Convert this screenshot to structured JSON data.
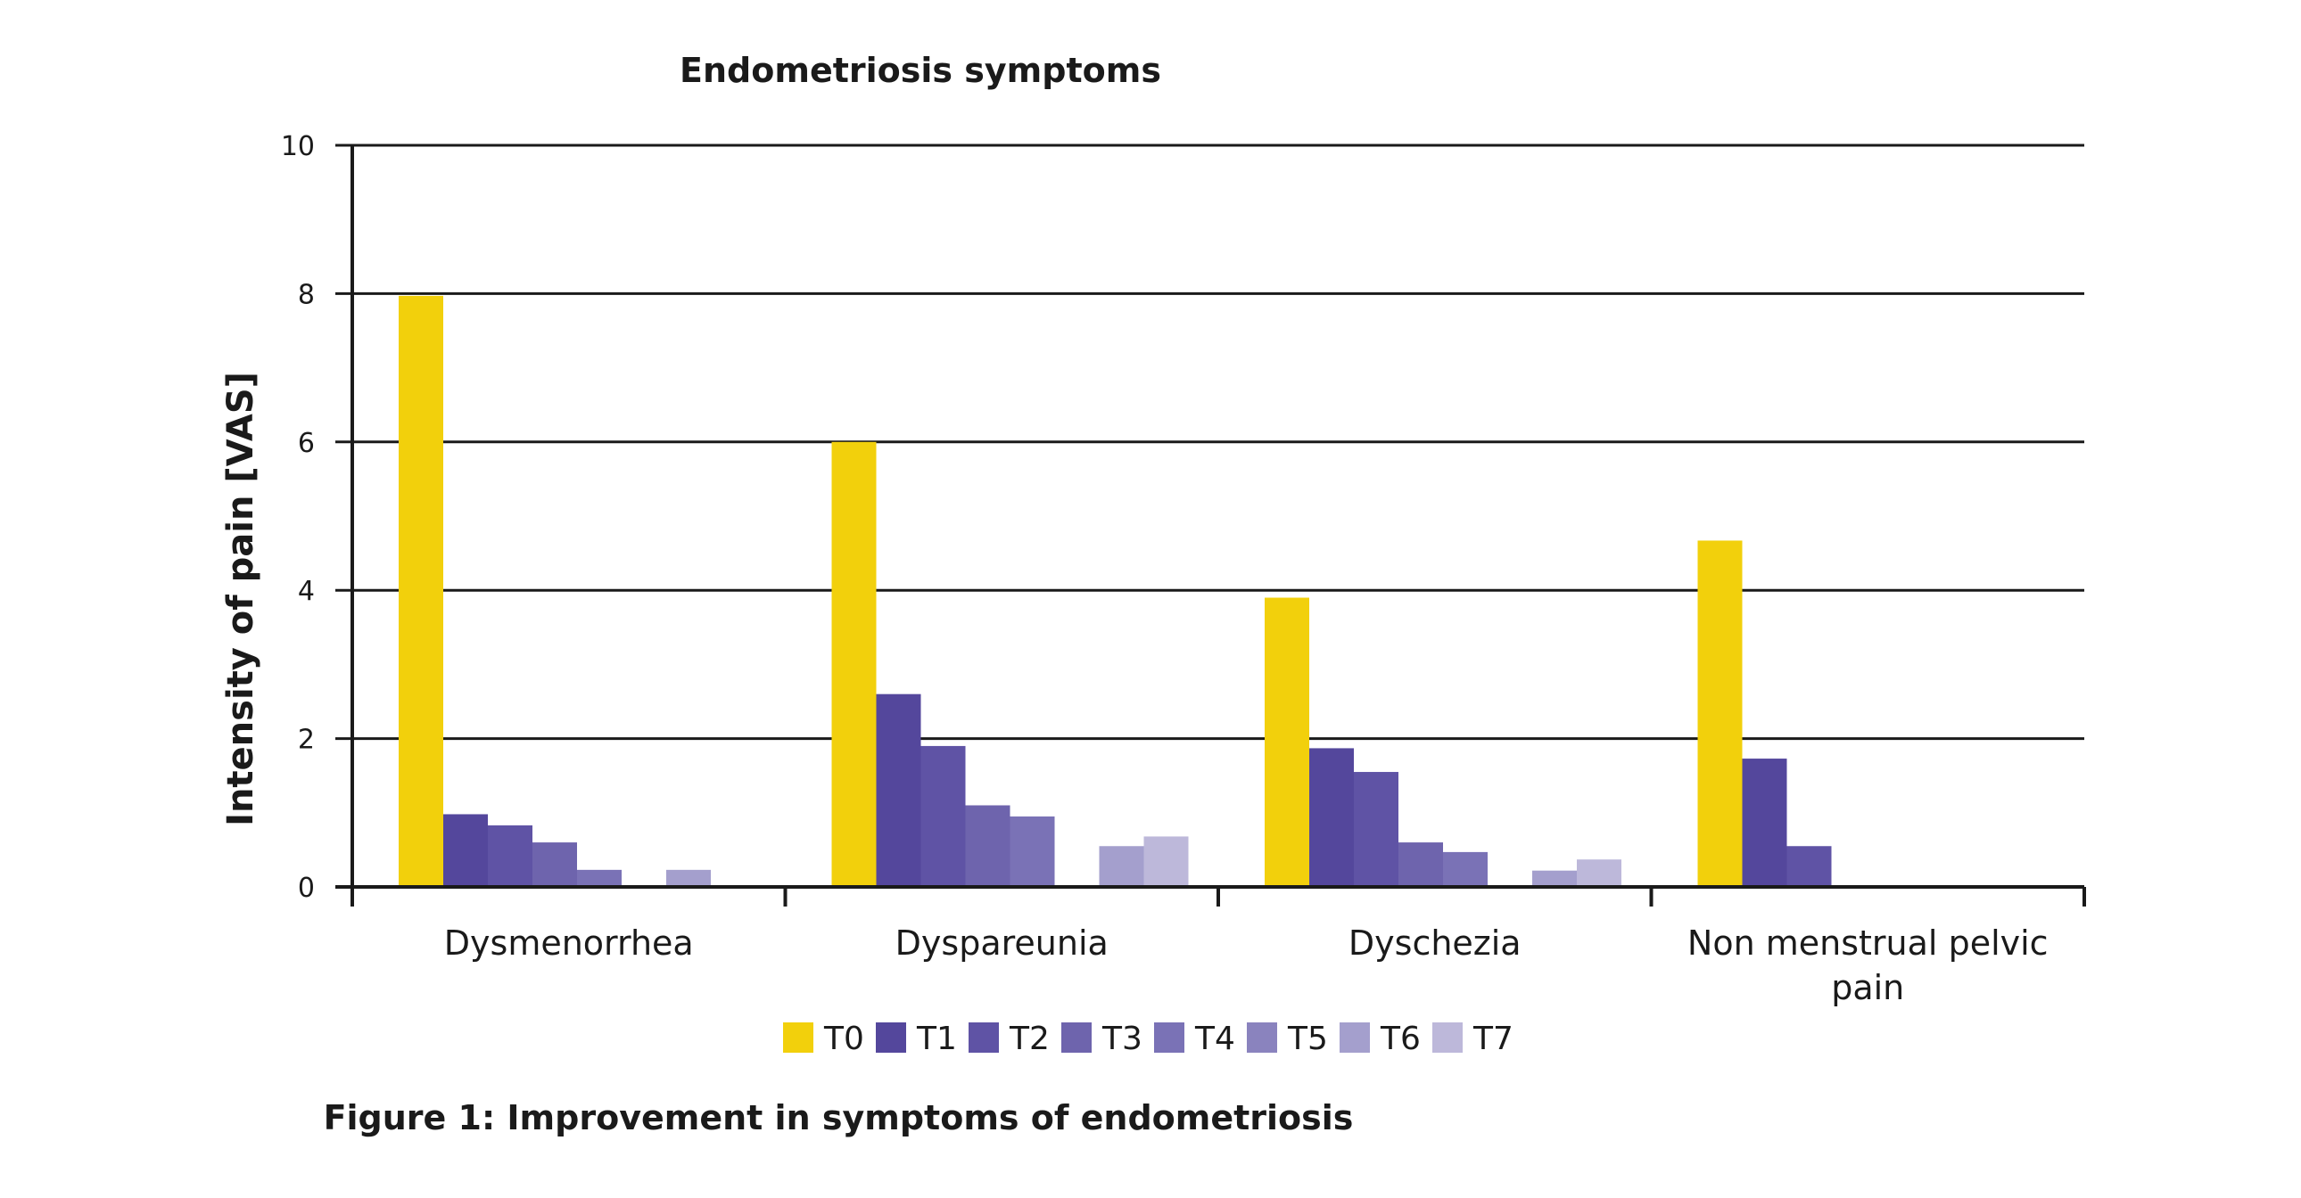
{
  "chart_data": {
    "type": "bar",
    "title": "Endometriosis symptoms",
    "ylabel": "Intensity of pain [VAS]",
    "xlabel": "",
    "ylim": [
      0,
      10
    ],
    "yticks": [
      "0",
      "2",
      "4",
      "6",
      "8",
      "10"
    ],
    "grid": true,
    "legend_position": "bottom",
    "categories": [
      [
        "Dysmenorrhea"
      ],
      [
        "Dyspareunia"
      ],
      [
        "Dyschezia"
      ],
      [
        "Non menstrual pelvic",
        "pain"
      ]
    ],
    "series": [
      {
        "name": "T0",
        "color": "#F2D00C",
        "values": [
          7.97,
          6.0,
          3.9,
          4.67
        ]
      },
      {
        "name": "T1",
        "color": "#54479C",
        "values": [
          0.98,
          2.6,
          1.87,
          1.73
        ]
      },
      {
        "name": "T2",
        "color": "#5F53A5",
        "values": [
          0.83,
          1.9,
          1.55,
          0.55
        ]
      },
      {
        "name": "T3",
        "color": "#6E64AD",
        "values": [
          0.6,
          1.1,
          0.6,
          0
        ]
      },
      {
        "name": "T4",
        "color": "#7A72B6",
        "values": [
          0.23,
          0.95,
          0.47,
          0
        ]
      },
      {
        "name": "T5",
        "color": "#8A83BE",
        "values": [
          0,
          0,
          0,
          0
        ]
      },
      {
        "name": "T6",
        "color": "#A49FCD",
        "values": [
          0.23,
          0.55,
          0.22,
          0
        ]
      },
      {
        "name": "T7",
        "color": "#BDB8DA",
        "values": [
          0,
          0.68,
          0.37,
          0
        ]
      }
    ]
  },
  "caption": "Figure 1: Improvement in symptoms of endometriosis"
}
